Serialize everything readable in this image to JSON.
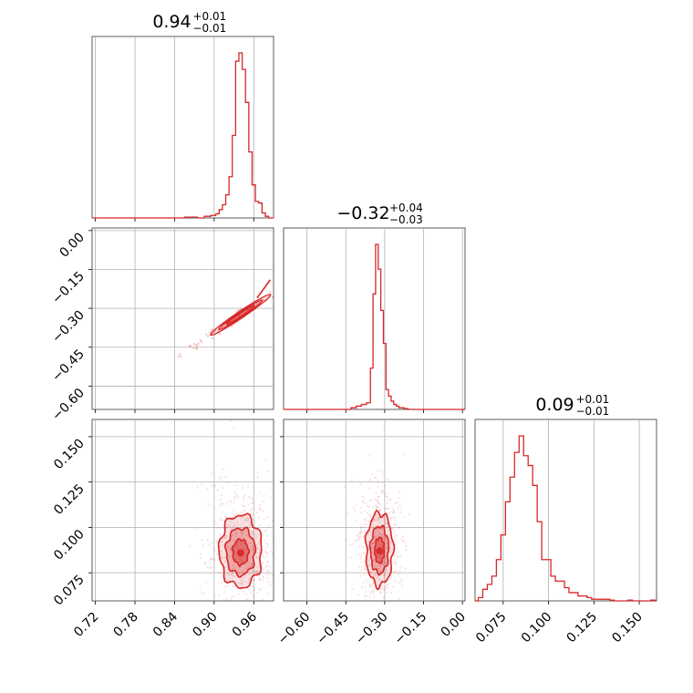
{
  "chart_data": {
    "type": "corner",
    "color": "#d62728",
    "parameters": [
      {
        "median": "0.94",
        "upper": "+0.01",
        "lower": "−0.01",
        "range": [
          0.715,
          0.99
        ],
        "ticks": [
          0.72,
          0.78,
          0.84,
          0.9,
          0.96
        ],
        "tick_labels": [
          "0.72",
          "0.78",
          "0.84",
          "0.90",
          "0.96"
        ]
      },
      {
        "median": "−0.32",
        "upper": "+0.04",
        "lower": "−0.03",
        "range": [
          -0.69,
          0.01
        ],
        "ticks": [
          -0.6,
          -0.45,
          -0.3,
          -0.15,
          0.0
        ],
        "tick_labels": [
          "−0.60",
          "−0.45",
          "−0.30",
          "−0.15",
          "0.00"
        ]
      },
      {
        "median": "0.09",
        "upper": "+0.01",
        "lower": "−0.01",
        "range": [
          0.0595,
          0.1595
        ],
        "ticks": [
          0.075,
          0.1,
          0.125,
          0.15
        ],
        "tick_labels": [
          "0.075",
          "0.100",
          "0.125",
          "0.150"
        ]
      }
    ],
    "histograms": [
      {
        "param": 0,
        "bin_centers": [
          0.86,
          0.87,
          0.88,
          0.89,
          0.9,
          0.905,
          0.91,
          0.915,
          0.92,
          0.925,
          0.93,
          0.935,
          0.94,
          0.945,
          0.95,
          0.955,
          0.96,
          0.965,
          0.97,
          0.975,
          0.98,
          0.985
        ],
        "heights": [
          0.5,
          0.5,
          0,
          1,
          1.5,
          2.5,
          5,
          8,
          14,
          25,
          50,
          95,
          100,
          90,
          70,
          40,
          20,
          10,
          9,
          3,
          1,
          0
        ]
      },
      {
        "param": 1,
        "bin_centers": [
          -0.42,
          -0.4,
          -0.38,
          -0.36,
          -0.35,
          -0.34,
          -0.33,
          -0.32,
          -0.31,
          -0.3,
          -0.29,
          -0.28,
          -0.27,
          -0.26,
          -0.25,
          -0.24,
          -0.23,
          -0.22,
          -0.2
        ],
        "heights": [
          1,
          2,
          3,
          4,
          25,
          70,
          100,
          85,
          60,
          40,
          12,
          8,
          5,
          3,
          2,
          1,
          1,
          0.5,
          0
        ]
      },
      {
        "param": 2,
        "bin_centers": [
          0.0625,
          0.065,
          0.0675,
          0.07,
          0.0725,
          0.075,
          0.0775,
          0.08,
          0.0825,
          0.085,
          0.0875,
          0.09,
          0.0925,
          0.095,
          0.0975,
          0.1,
          0.1025,
          0.105,
          0.1075,
          0.11,
          0.1125,
          0.115,
          0.1175,
          0.12,
          0.1225,
          0.125,
          0.1275,
          0.13,
          0.1325,
          0.135,
          0.1375,
          0.14,
          0.1425,
          0.145,
          0.1475,
          0.15,
          0.1525,
          0.155,
          0.1575
        ],
        "heights": [
          2,
          7,
          10,
          15,
          25,
          40,
          60,
          75,
          90,
          100,
          88,
          82,
          70,
          48,
          25,
          25,
          15,
          12,
          12,
          8,
          5,
          5,
          3,
          3,
          2,
          1,
          1,
          1,
          1,
          0.5,
          0,
          0,
          0,
          0.5,
          0,
          0,
          0,
          0,
          0.5
        ]
      }
    ],
    "scatter_panels": [
      {
        "x_param": 0,
        "y_param": 1,
        "contour_style": "ellipse",
        "center": [
          0.94,
          -0.325
        ],
        "contour_axes": [
          [
            0.026,
            0.0055
          ],
          [
            0.04,
            0.009
          ],
          [
            0.055,
            0.013
          ]
        ],
        "contour_angle_deg": 34,
        "density_center": [
          0.94,
          -0.31
        ]
      },
      {
        "x_param": 0,
        "y_param": 2,
        "contour_style": "blob",
        "center": [
          0.94,
          0.086
        ],
        "contour_radii": [
          [
            0.012,
            0.007
          ],
          [
            0.022,
            0.013
          ],
          [
            0.032,
            0.02
          ]
        ]
      },
      {
        "x_param": 1,
        "y_param": 2,
        "contour_style": "blob",
        "center": [
          -0.32,
          0.087
        ],
        "contour_radii": [
          [
            0.018,
            0.007
          ],
          [
            0.035,
            0.013
          ],
          [
            0.052,
            0.02
          ]
        ]
      }
    ]
  }
}
